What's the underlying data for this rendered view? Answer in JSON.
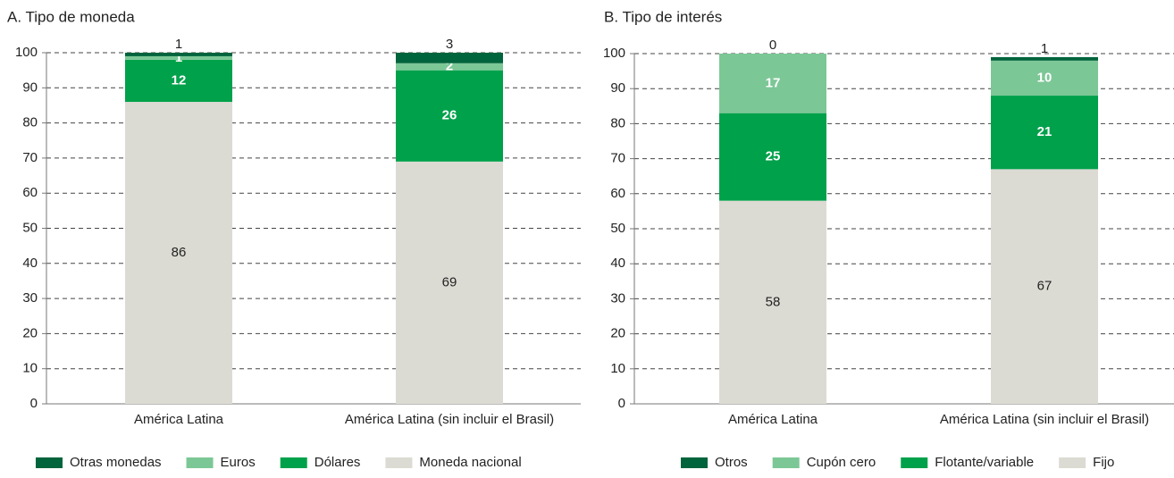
{
  "chart_data": [
    {
      "type": "stacked_bar",
      "title": "A. Tipo de moneda",
      "categories": [
        "América Latina",
        "América Latina (sin incluir el Brasil)"
      ],
      "series": [
        {
          "name": "Moneda nacional",
          "color": "#dcdbd3",
          "values": [
            86,
            69
          ]
        },
        {
          "name": "Dólares",
          "color": "#00a14b",
          "values": [
            12,
            26
          ]
        },
        {
          "name": "Euros",
          "color": "#7cc796",
          "values": [
            1,
            2
          ]
        },
        {
          "name": "Otras monedas",
          "color": "#00643c",
          "values": [
            1,
            3
          ]
        }
      ],
      "ylim": [
        0,
        100
      ],
      "yticks": [
        0,
        10,
        20,
        30,
        40,
        50,
        60,
        70,
        80,
        90,
        100
      ],
      "grid": true,
      "legend": "bottom"
    },
    {
      "type": "stacked_bar",
      "title": "B. Tipo de interés",
      "categories": [
        "América Latina",
        "América Latina (sin incluir el Brasil)"
      ],
      "series": [
        {
          "name": "Fijo",
          "color": "#dcdbd3",
          "values": [
            58,
            67
          ]
        },
        {
          "name": "Flotante/variable",
          "color": "#00a14b",
          "values": [
            25,
            21
          ]
        },
        {
          "name": "Cupón cero",
          "color": "#7cc796",
          "values": [
            17,
            10
          ]
        },
        {
          "name": "Otros",
          "color": "#00643c",
          "values": [
            0,
            1
          ]
        }
      ],
      "ylim": [
        0,
        100
      ],
      "yticks": [
        0,
        10,
        20,
        30,
        40,
        50,
        60,
        70,
        80,
        90,
        100
      ],
      "grid": true,
      "legend": "bottom"
    }
  ]
}
